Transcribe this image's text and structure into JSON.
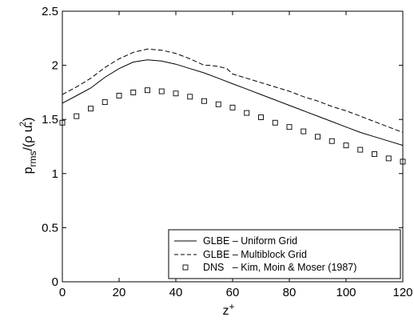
{
  "chart_data": {
    "type": "line",
    "title": "",
    "xlabel": "z",
    "xlabel_sup": "+",
    "ylabel": {
      "p": "p",
      "rms": "rms",
      "mid": "/(ρ u",
      "star": "*",
      "two": "2",
      "close": ")"
    },
    "xlim": [
      0,
      120
    ],
    "ylim": [
      0,
      2.5
    ],
    "x_ticks": [
      "0",
      "20",
      "40",
      "60",
      "80",
      "100",
      "120"
    ],
    "y_ticks": [
      "0",
      "0.5",
      "1",
      "1.5",
      "2",
      "2.5"
    ],
    "grid": false,
    "legend_position": "bottom-right",
    "series": [
      {
        "name": "GLBE – Uniform Grid",
        "style": "solid",
        "x": [
          0,
          5,
          10,
          15,
          20,
          25,
          30,
          35,
          40,
          45,
          50,
          55,
          60,
          65,
          70,
          75,
          80,
          85,
          90,
          95,
          100,
          105,
          110,
          115,
          120
        ],
        "y": [
          1.65,
          1.72,
          1.79,
          1.89,
          1.97,
          2.03,
          2.05,
          2.04,
          2.01,
          1.97,
          1.93,
          1.88,
          1.83,
          1.78,
          1.73,
          1.68,
          1.63,
          1.58,
          1.53,
          1.48,
          1.43,
          1.38,
          1.34,
          1.3,
          1.26
        ]
      },
      {
        "name": "GLBE – Multiblock Grid",
        "style": "dashed",
        "x": [
          0,
          5,
          10,
          15,
          20,
          25,
          30,
          35,
          40,
          45,
          50,
          52,
          55,
          58,
          60,
          65,
          70,
          75,
          80,
          85,
          90,
          95,
          100,
          105,
          110,
          115,
          120
        ],
        "y": [
          1.73,
          1.8,
          1.88,
          1.98,
          2.06,
          2.12,
          2.15,
          2.14,
          2.11,
          2.06,
          2.0,
          2.0,
          1.99,
          1.97,
          1.92,
          1.88,
          1.84,
          1.8,
          1.76,
          1.71,
          1.67,
          1.62,
          1.58,
          1.53,
          1.48,
          1.43,
          1.38
        ]
      },
      {
        "name": "DNS   – Kim, Moin & Moser (1987)",
        "style": "square-markers",
        "x": [
          0,
          5,
          10,
          15,
          20,
          25,
          30,
          35,
          40,
          45,
          50,
          55,
          60,
          65,
          70,
          75,
          80,
          85,
          90,
          95,
          100,
          105,
          110,
          115,
          120
        ],
        "y": [
          1.47,
          1.53,
          1.6,
          1.66,
          1.72,
          1.75,
          1.77,
          1.76,
          1.74,
          1.71,
          1.67,
          1.64,
          1.61,
          1.56,
          1.52,
          1.47,
          1.43,
          1.39,
          1.34,
          1.3,
          1.26,
          1.22,
          1.18,
          1.14,
          1.11
        ]
      }
    ]
  }
}
